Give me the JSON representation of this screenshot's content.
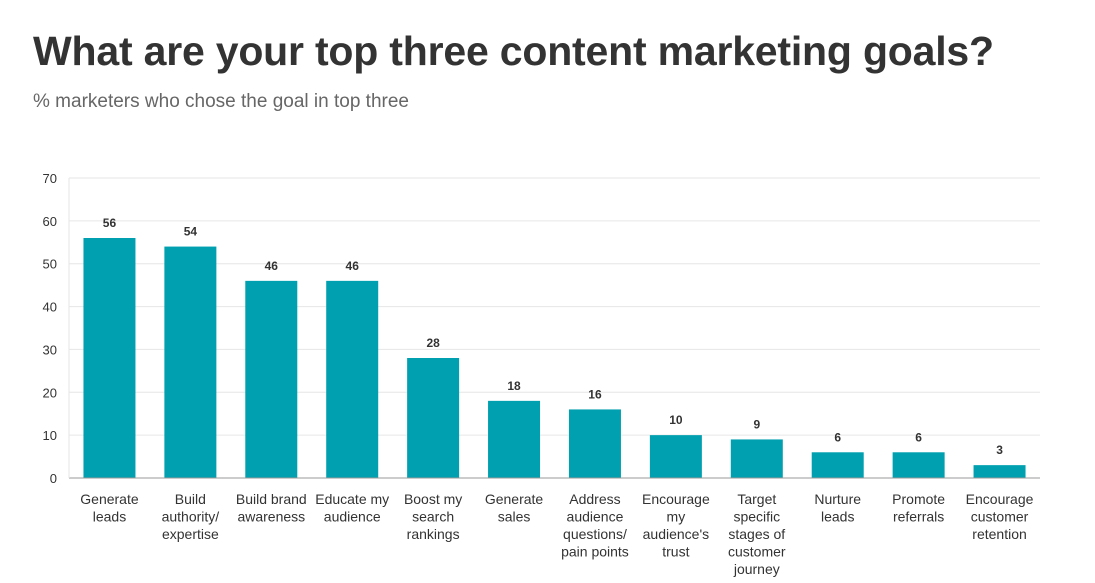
{
  "title": "What are your top three content marketing goals?",
  "subtitle": "% marketers who chose the goal in top three",
  "colors": {
    "bar": "#00a0b0",
    "grid": "#e6e6e6",
    "axis": "#999999"
  },
  "chart_data": {
    "type": "bar",
    "categories": [
      [
        "Generate",
        "leads"
      ],
      [
        "Build",
        "authority/",
        "expertise"
      ],
      [
        "Build brand",
        "awareness"
      ],
      [
        "Educate my",
        "audience"
      ],
      [
        "Boost my",
        "search",
        "rankings"
      ],
      [
        "Generate",
        "sales"
      ],
      [
        "Address",
        "audience",
        "questions/",
        "pain points"
      ],
      [
        "Encourage",
        "my",
        "audience's",
        "trust"
      ],
      [
        "Target",
        "specific",
        "stages of",
        "customer",
        "journey"
      ],
      [
        "Nurture",
        "leads"
      ],
      [
        "Promote",
        "referrals"
      ],
      [
        "Encourage",
        "customer",
        "retention"
      ]
    ],
    "values": [
      56,
      54,
      46,
      46,
      28,
      18,
      16,
      10,
      9,
      6,
      6,
      3
    ],
    "ylim": [
      0,
      70
    ],
    "yticks": [
      0,
      10,
      20,
      30,
      40,
      50,
      60,
      70
    ],
    "grid": true,
    "data_labels": true
  }
}
